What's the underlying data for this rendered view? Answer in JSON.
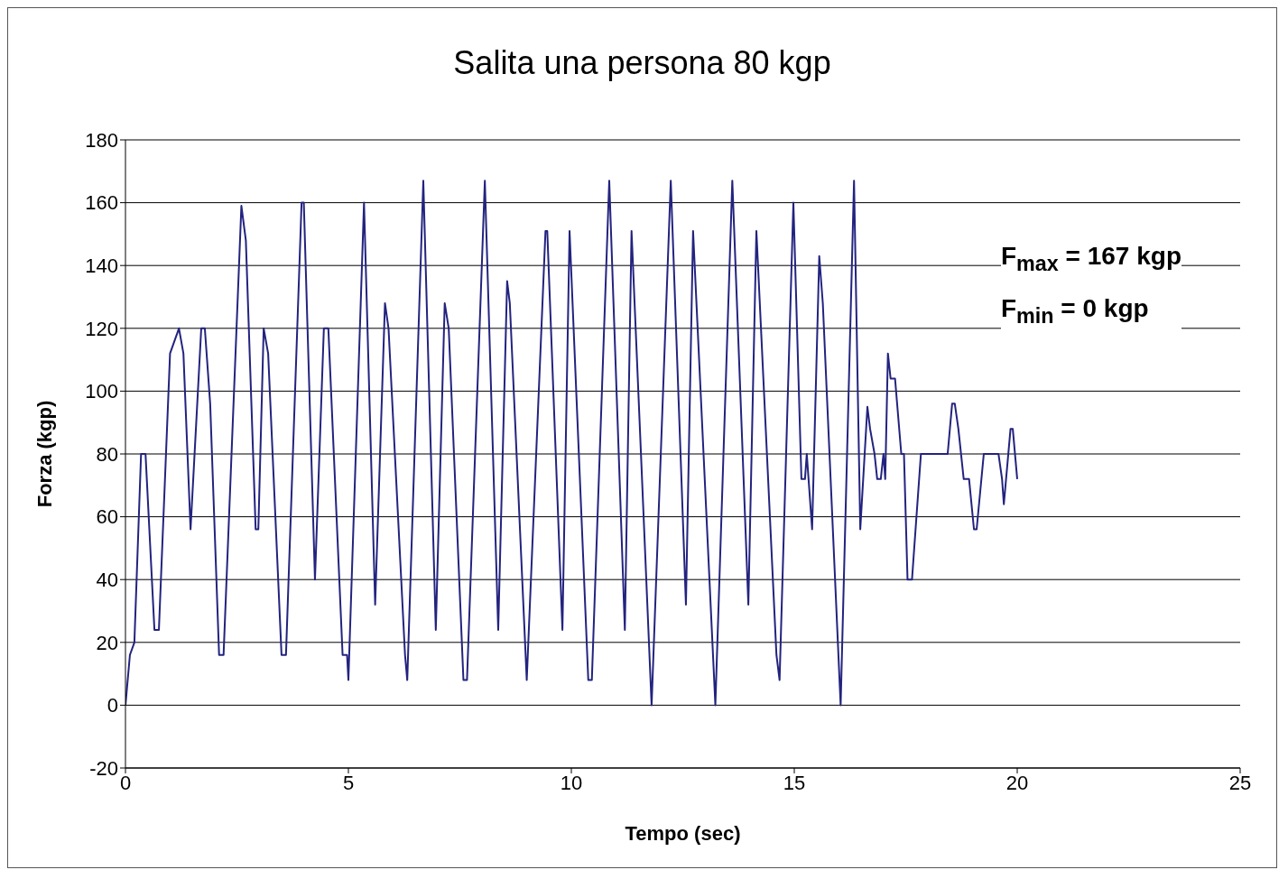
{
  "chart_data": {
    "type": "line",
    "title": "Salita una persona 80 kgp",
    "xlabel": "Tempo (sec)",
    "ylabel": "Forza (kgp)",
    "annotations": [
      "F$_{max}$ = 167 kgp",
      "F$_{min}$ = 0 kgp"
    ],
    "x": [
      0,
      0.1,
      0.2,
      0.35,
      0.45,
      0.65,
      0.75,
      1.0,
      1.2,
      1.3,
      1.46,
      1.7,
      1.78,
      1.9,
      2.1,
      2.2,
      2.6,
      2.7,
      2.92,
      2.98,
      3.1,
      3.2,
      3.5,
      3.6,
      3.95,
      4.0,
      4.25,
      4.45,
      4.55,
      4.87,
      4.97,
      5.0,
      5.35,
      5.6,
      5.82,
      5.9,
      6.27,
      6.32,
      6.68,
      6.96,
      7.16,
      7.25,
      7.58,
      7.66,
      8.06,
      8.36,
      8.56,
      8.62,
      9.0,
      9.42,
      9.46,
      9.8,
      9.96,
      10.38,
      10.46,
      10.85,
      11.2,
      11.35,
      11.8,
      12.23,
      12.57,
      12.73,
      13.23,
      13.61,
      13.97,
      14.15,
      14.6,
      14.67,
      14.98,
      15.16,
      15.24,
      15.28,
      15.4,
      15.56,
      15.64,
      16.04,
      16.34,
      16.48,
      16.64,
      16.7,
      16.8,
      16.86,
      16.94,
      17.0,
      17.04,
      17.1,
      17.16,
      17.26,
      17.4,
      17.46,
      17.54,
      17.64,
      17.84,
      18.44,
      18.54,
      18.6,
      18.68,
      18.8,
      18.92,
      19.03,
      19.09,
      19.25,
      19.58,
      19.66,
      19.7,
      19.85,
      19.9,
      20.0
    ],
    "series": [
      {
        "color": "#23237f",
        "values": [
          0,
          16,
          20,
          80,
          80,
          24,
          24,
          112,
          120,
          112,
          56,
          120,
          120,
          96,
          16,
          16,
          159,
          148,
          56,
          56,
          120,
          112,
          16,
          16,
          160,
          160,
          40,
          120,
          120,
          16,
          16,
          8,
          160,
          32,
          128,
          120,
          16,
          8,
          167,
          24,
          128,
          120,
          8,
          8,
          167,
          24,
          135,
          128,
          8,
          151,
          151,
          24,
          151,
          8,
          8,
          167,
          24,
          151,
          0,
          167,
          32,
          151,
          0,
          167,
          32,
          151,
          16,
          8,
          160,
          72,
          72,
          80,
          56,
          143,
          128,
          0,
          167,
          56,
          95,
          88,
          80,
          72,
          72,
          80,
          72,
          112,
          104,
          104,
          80,
          80,
          40,
          40,
          80,
          80,
          96,
          96,
          88,
          72,
          72,
          56,
          56,
          80,
          80,
          72,
          64,
          88,
          88,
          72
        ]
      }
    ],
    "xlim": [
      0,
      25
    ],
    "xticks": [
      0,
      5,
      10,
      15,
      20,
      25
    ],
    "ylim": [
      -20,
      180
    ],
    "yticks": [
      -20,
      0,
      20,
      40,
      60,
      80,
      100,
      120,
      140,
      160,
      180
    ],
    "grid": "y",
    "marker": "none",
    "line_style": "solid"
  }
}
